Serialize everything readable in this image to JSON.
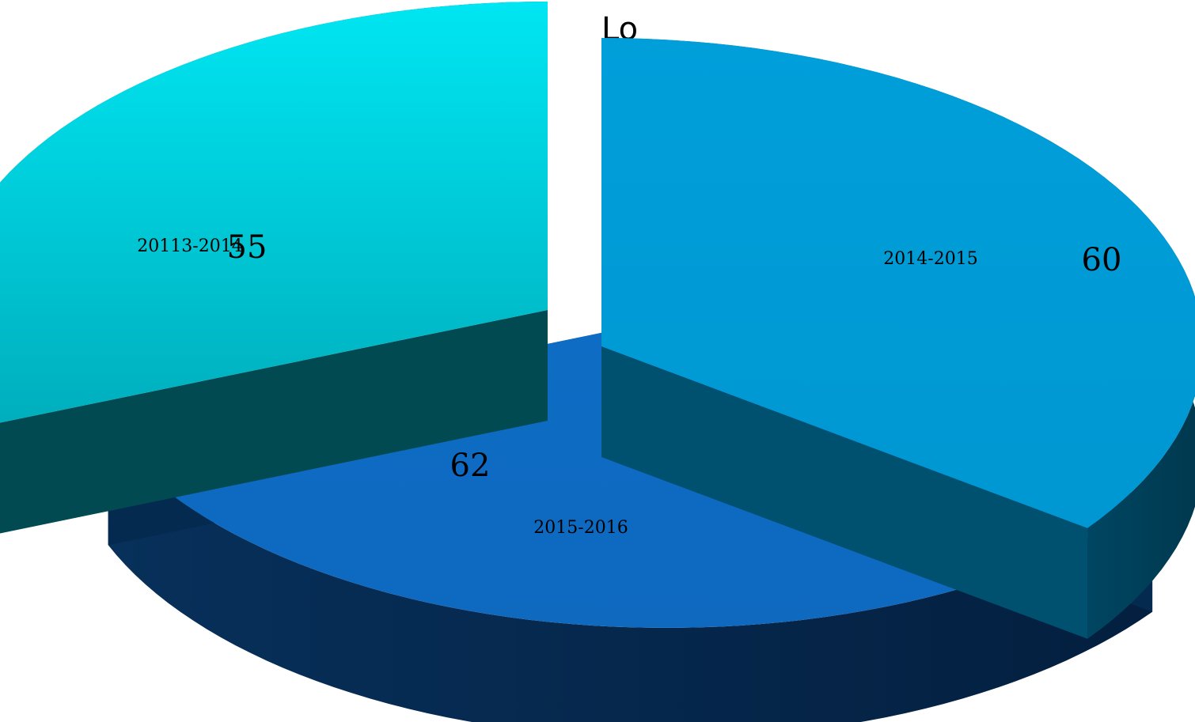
{
  "chart_data": {
    "type": "pie",
    "title": "Lo",
    "categories": [
      "20113-2014",
      "2014-2015",
      "2015-2016"
    ],
    "values": [
      55,
      60,
      62
    ],
    "value_labels": [
      "55",
      "60",
      "62"
    ],
    "colors": {
      "slice_top": [
        "#00cbdb",
        "#0e6bc3",
        "#009bd6"
      ],
      "slice_side": [
        "#024a52",
        "#052a4f",
        "#00506f"
      ]
    },
    "legend": "none",
    "style": "3d-exploded"
  }
}
